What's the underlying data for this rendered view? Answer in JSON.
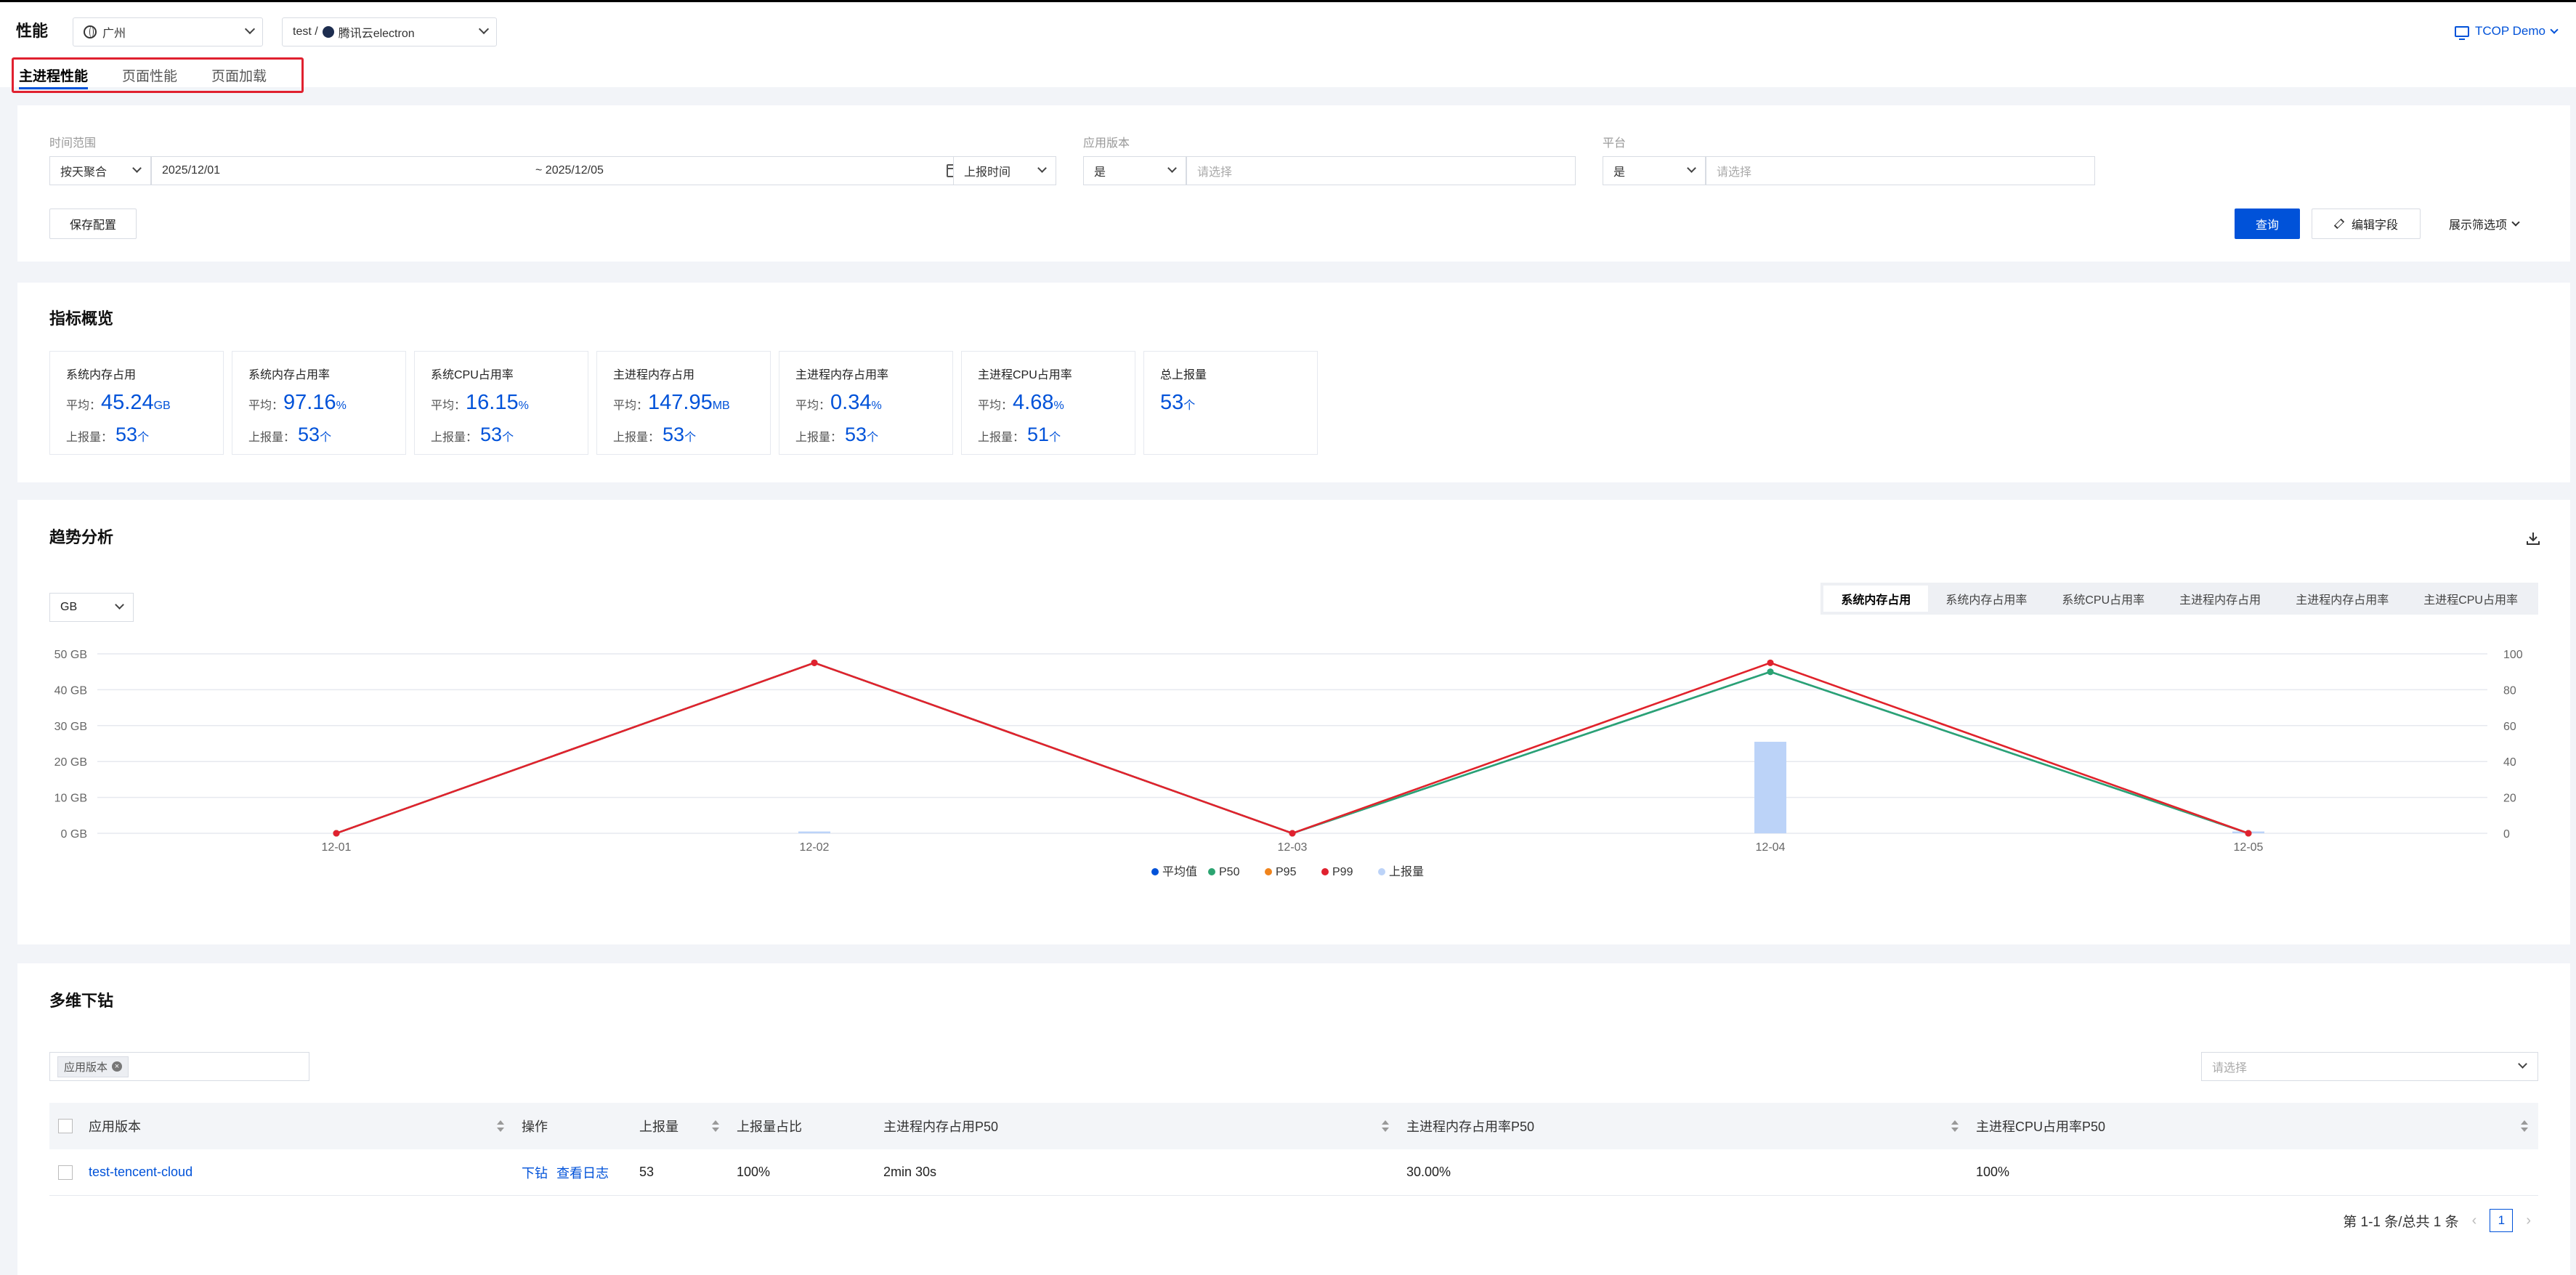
{
  "header": {
    "title": "性能",
    "region": "广州",
    "project_prefix": "test /",
    "project_name": "腾讯云electron",
    "account": "TCOP Demo"
  },
  "tabs": [
    {
      "label": "主进程性能",
      "active": true
    },
    {
      "label": "页面性能",
      "active": false
    },
    {
      "label": "页面加载",
      "active": false
    }
  ],
  "filters": {
    "time_range_label": "时间范围",
    "aggregate": "按天聚合",
    "start_date": "2025/12/01",
    "end_date": "~ 2025/12/05",
    "time_type": "上报时间",
    "app_version_label": "应用版本",
    "app_version_op": "是",
    "app_version_placeholder": "请选择",
    "platform_label": "平台",
    "platform_op": "是",
    "platform_placeholder": "请选择",
    "save_config": "保存配置",
    "query": "查询",
    "edit_fields": "编辑字段",
    "show_filters": "展示筛选项"
  },
  "overview": {
    "title": "指标概览",
    "avg_label": "平均：",
    "count_label": "上报量：",
    "metrics": [
      {
        "title": "系统内存占用",
        "avg": "45.24",
        "unit": "GB",
        "count": "53",
        "count_unit": "个"
      },
      {
        "title": "系统内存占用率",
        "avg": "97.16",
        "unit": "%",
        "count": "53",
        "count_unit": "个"
      },
      {
        "title": "系统CPU占用率",
        "avg": "16.15",
        "unit": "%",
        "count": "53",
        "count_unit": "个"
      },
      {
        "title": "主进程内存占用",
        "avg": "147.95",
        "unit": "MB",
        "count": "53",
        "count_unit": "个"
      },
      {
        "title": "主进程内存占用率",
        "avg": "0.34",
        "unit": "%",
        "count": "53",
        "count_unit": "个"
      },
      {
        "title": "主进程CPU占用率",
        "avg": "4.68",
        "unit": "%",
        "count": "51",
        "count_unit": "个"
      },
      {
        "title": "总上报量",
        "value": "53",
        "unit": "个"
      }
    ]
  },
  "trend": {
    "title": "趋势分析",
    "unit_select": "GB",
    "segments": [
      "系统内存占用",
      "系统内存占用率",
      "系统CPU占用率",
      "主进程内存占用",
      "主进程内存占用率",
      "主进程CPU占用率"
    ],
    "active_segment": 0
  },
  "chart_data": {
    "type": "line",
    "categories": [
      "12-01",
      "12-02",
      "12-03",
      "12-04",
      "12-05"
    ],
    "y_left_ticks": [
      "0 GB",
      "10 GB",
      "20 GB",
      "30 GB",
      "40 GB",
      "50 GB"
    ],
    "y_right_ticks": [
      "0",
      "20",
      "40",
      "60",
      "80",
      "100"
    ],
    "ylim_left": [
      0,
      50
    ],
    "ylim_right": [
      0,
      100
    ],
    "series": [
      {
        "name": "平均值",
        "color": "#0052d9",
        "axis": "left",
        "kind": "line",
        "values": [
          0,
          47.5,
          0,
          45,
          0
        ]
      },
      {
        "name": "P50",
        "color": "#2ba471",
        "axis": "left",
        "kind": "line",
        "values": [
          0,
          47.5,
          0,
          45,
          0
        ]
      },
      {
        "name": "P95",
        "color": "#f0841c",
        "axis": "left",
        "kind": "line",
        "values": [
          0,
          47.5,
          0,
          47.5,
          0
        ]
      },
      {
        "name": "P99",
        "color": "#e0212f",
        "axis": "left",
        "kind": "line",
        "values": [
          0,
          47.5,
          0,
          47.5,
          0
        ]
      },
      {
        "name": "上报量",
        "color": "#bcd3f8",
        "axis": "right",
        "kind": "bar",
        "values": [
          0,
          1,
          0,
          51,
          1
        ]
      }
    ],
    "grid": true,
    "legend": "bottom"
  },
  "drilldown": {
    "title": "多维下钻",
    "chip": "应用版本",
    "select_placeholder": "请选择",
    "columns": [
      "应用版本",
      "操作",
      "上报量",
      "上报量占比",
      "主进程内存占用P50",
      "主进程内存占用率P50",
      "主进程CPU占用率P50"
    ],
    "rows": [
      {
        "version": "test-tencent-cloud",
        "op1": "下钻",
        "op2": "查看日志",
        "count": "53",
        "ratio": "100%",
        "mem_p50": "2min 30s",
        "mem_rate_p50": "30.00%",
        "cpu_p50": "100%"
      }
    ],
    "pagination": {
      "summary": "第 1-1 条/总共 1 条",
      "page": "1"
    }
  }
}
